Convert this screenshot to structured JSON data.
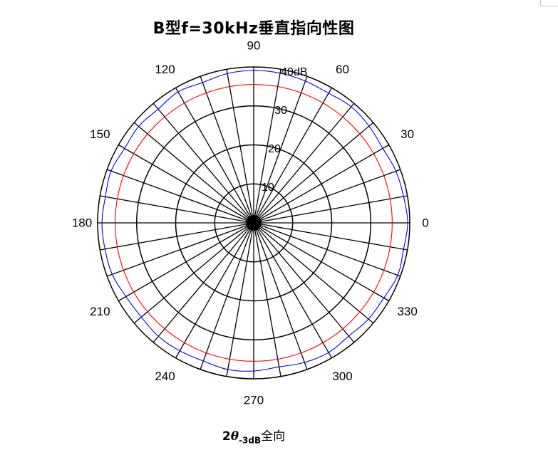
{
  "title": "B型f=30kHz垂直指向性图",
  "caption": {
    "prefix": "2",
    "theta": "θ",
    "subscript": "-3dB",
    "suffix": "全向"
  },
  "chart_data": {
    "type": "polar",
    "title": "B型f=30kHz垂直指向性图",
    "angle_ticks": [
      0,
      30,
      60,
      90,
      120,
      150,
      180,
      210,
      240,
      270,
      300,
      330
    ],
    "angle_labels": [
      "0",
      "30",
      "60",
      "90",
      "120",
      "150",
      "180",
      "210",
      "240",
      "270",
      "300",
      "330"
    ],
    "spoke_step_deg": 10,
    "radial_ticks": [
      10,
      20,
      30,
      40
    ],
    "radial_labels": [
      "10",
      "20",
      "30",
      "40dB"
    ],
    "rlim": [
      0,
      40
    ],
    "grid": true,
    "colors": {
      "grid": "#000000",
      "response": "#0000ff",
      "reference": "#ff0000"
    },
    "series": [
      {
        "color": "#0000ff",
        "style": "solid",
        "theta_deg": [
          0,
          10,
          20,
          30,
          40,
          50,
          60,
          70,
          80,
          90,
          100,
          110,
          120,
          130,
          140,
          150,
          160,
          170,
          180,
          190,
          200,
          210,
          220,
          230,
          240,
          250,
          260,
          270,
          280,
          290,
          300,
          310,
          320,
          330,
          340,
          350,
          360
        ],
        "r": [
          39.5,
          39.0,
          38.8,
          38.2,
          38.6,
          38.9,
          38.4,
          38.7,
          39.0,
          39.1,
          38.9,
          38.3,
          38.8,
          38.1,
          38.5,
          38.2,
          38.9,
          38.6,
          38.9,
          38.7,
          38.6,
          37.8,
          37.6,
          38.0,
          37.9,
          37.7,
          38.2,
          38.0,
          37.5,
          38.1,
          38.4,
          37.9,
          38.4,
          38.5,
          39.3,
          39.0,
          39.5
        ]
      },
      {
        "color": "#ff0000",
        "style": "solid",
        "theta_deg": [
          0,
          360
        ],
        "r": [
          35.5,
          35.5
        ]
      }
    ]
  }
}
